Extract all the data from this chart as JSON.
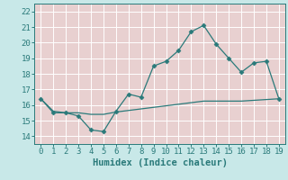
{
  "title": "",
  "xlabel": "Humidex (Indice chaleur)",
  "xlim": [
    -0.5,
    19.5
  ],
  "ylim": [
    13.5,
    22.5
  ],
  "yticks": [
    14,
    15,
    16,
    17,
    18,
    19,
    20,
    21,
    22
  ],
  "xticks": [
    0,
    1,
    2,
    3,
    4,
    5,
    6,
    7,
    8,
    9,
    10,
    11,
    12,
    13,
    14,
    15,
    16,
    17,
    18,
    19
  ],
  "line1_x": [
    0,
    1,
    2,
    3,
    4,
    5,
    6,
    7,
    8,
    9,
    10,
    11,
    12,
    13,
    14,
    15,
    16,
    17,
    18,
    19
  ],
  "line1_y": [
    16.4,
    15.5,
    15.5,
    15.3,
    14.4,
    14.3,
    15.6,
    16.7,
    16.5,
    18.5,
    18.8,
    19.5,
    20.7,
    21.1,
    19.9,
    19.0,
    18.1,
    18.7,
    18.8,
    16.4
  ],
  "line2_x": [
    0,
    1,
    2,
    3,
    4,
    5,
    6,
    7,
    8,
    9,
    10,
    11,
    12,
    13,
    14,
    15,
    16,
    17,
    18,
    19
  ],
  "line2_y": [
    16.4,
    15.6,
    15.5,
    15.5,
    15.4,
    15.4,
    15.55,
    15.65,
    15.75,
    15.85,
    15.95,
    16.05,
    16.15,
    16.25,
    16.25,
    16.25,
    16.25,
    16.3,
    16.35,
    16.4
  ],
  "line_color": "#2a7a7a",
  "outer_bg_color": "#c8e8e8",
  "plot_bg_color": "#e8d0d0",
  "grid_color": "#ffffff",
  "tick_fontsize": 6.5,
  "label_fontsize": 7.5
}
